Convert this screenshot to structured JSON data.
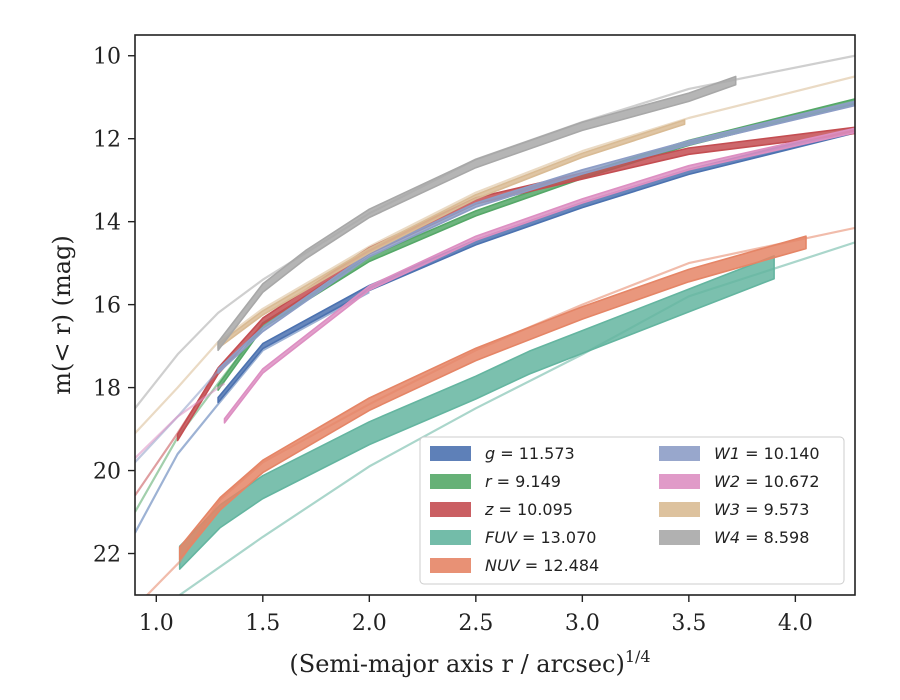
{
  "chart_data": {
    "type": "line",
    "xlabel": "(Semi-major axis r / arcsec)",
    "xlabel_sup": "1/4",
    "ylabel": "m(< r) (mag)",
    "xlim": [
      0.9,
      4.28
    ],
    "ylim": [
      23.0,
      9.5
    ],
    "y_inverted": true,
    "grid": false,
    "legend_position": "lower-right",
    "x_ticks": [
      1.0,
      1.5,
      2.0,
      2.5,
      3.0,
      3.5,
      4.0
    ],
    "x_tick_labels": [
      "1.0",
      "1.5",
      "2.0",
      "2.5",
      "3.0",
      "3.5",
      "4.0"
    ],
    "y_ticks": [
      10,
      12,
      14,
      16,
      18,
      20,
      22
    ],
    "y_tick_labels": [
      "10",
      "12",
      "14",
      "16",
      "18",
      "20",
      "22"
    ],
    "series": [
      {
        "band": "g",
        "value": "11.573",
        "color": "#4c72b0",
        "band_x": [
          1.29,
          1.5,
          2.0,
          2.5,
          3.0,
          3.5,
          4.28
        ],
        "band_y": [
          18.3,
          17.0,
          15.6,
          14.5,
          13.6,
          12.8,
          11.8
        ],
        "band_width": 0.12,
        "tail_x": [
          0.9,
          1.1,
          1.29,
          1.5,
          2.0
        ],
        "tail_y": [
          21.5,
          19.6,
          18.4,
          17.1,
          15.7
        ]
      },
      {
        "band": "r",
        "value": "9.149",
        "color": "#55a868",
        "band_x": [
          1.29,
          1.5,
          2.0,
          2.5,
          3.0,
          3.5,
          4.28
        ],
        "band_y": [
          18.0,
          16.5,
          14.9,
          13.8,
          12.9,
          12.1,
          11.1
        ],
        "band_width": 0.12,
        "tail_x": [
          0.9,
          1.1,
          1.29,
          1.5
        ],
        "tail_y": [
          21.0,
          19.2,
          17.9,
          16.5
        ]
      },
      {
        "band": "z",
        "value": "10.095",
        "color": "#c44e52",
        "band_x": [
          1.1,
          1.29,
          1.5,
          2.0,
          2.5,
          3.0,
          3.5,
          4.28
        ],
        "band_y": [
          19.2,
          17.6,
          16.4,
          14.7,
          13.5,
          12.9,
          12.3,
          11.8
        ],
        "band_width": 0.15,
        "tail_x": [
          0.9,
          1.1,
          1.29
        ],
        "tail_y": [
          20.6,
          19.1,
          17.6
        ]
      },
      {
        "band": "FUV",
        "value": "13.070",
        "color": "#64b5a0",
        "band_x": [
          1.11,
          1.3,
          1.5,
          2.0,
          2.5,
          2.75,
          3.0,
          3.5,
          3.9
        ],
        "band_y": [
          22.1,
          21.1,
          20.4,
          19.1,
          18.0,
          17.4,
          16.9,
          15.9,
          15.1
        ],
        "band_width": 0.55,
        "tail_x": [
          1.11,
          1.5,
          2.0,
          2.5,
          3.0,
          3.5,
          4.28
        ],
        "tail_y": [
          23.0,
          21.6,
          19.9,
          18.5,
          17.2,
          15.8,
          14.5
        ]
      },
      {
        "band": "NUV",
        "value": "12.484",
        "color": "#e58566",
        "band_x": [
          1.11,
          1.3,
          1.5,
          2.0,
          2.5,
          3.0,
          3.5,
          4.05
        ],
        "band_y": [
          22.0,
          20.8,
          19.9,
          18.4,
          17.2,
          16.2,
          15.3,
          14.5
        ],
        "band_width": 0.3,
        "tail_x": [
          0.9,
          1.11,
          1.3,
          1.5,
          2.0,
          2.5,
          3.0,
          3.5,
          4.28
        ],
        "tail_y": [
          23.3,
          22.2,
          20.7,
          19.8,
          18.4,
          17.1,
          16.0,
          15.0,
          14.15
        ]
      },
      {
        "band": "W1",
        "value": "10.140",
        "color": "#8d9dc6",
        "band_x": [
          1.29,
          1.5,
          2.0,
          2.5,
          3.0,
          3.5,
          4.28
        ],
        "band_y": [
          17.6,
          16.6,
          14.8,
          13.6,
          12.8,
          12.1,
          11.15
        ],
        "band_width": 0.1,
        "tail_x": [
          0.9,
          1.1,
          1.29
        ],
        "tail_y": [
          19.8,
          18.7,
          17.6
        ]
      },
      {
        "band": "W2",
        "value": "10.672",
        "color": "#dd8fc2",
        "band_x": [
          1.32,
          1.5,
          2.0,
          2.5,
          3.0,
          3.5,
          4.28
        ],
        "band_y": [
          18.8,
          17.6,
          15.6,
          14.4,
          13.5,
          12.7,
          11.8
        ],
        "band_width": 0.1,
        "tail_x": [
          0.9,
          1.1,
          1.32
        ],
        "tail_y": [
          19.7,
          18.7,
          17.9
        ]
      },
      {
        "band": "W3",
        "value": "9.573",
        "color": "#d9bb94",
        "band_x": [
          1.29,
          1.5,
          2.0,
          2.5,
          3.0,
          3.48
        ],
        "band_y": [
          17.0,
          16.2,
          14.7,
          13.4,
          12.4,
          11.6
        ],
        "band_width": 0.1,
        "tail_x": [
          0.9,
          1.1,
          1.29,
          1.5,
          2.0,
          2.5,
          3.0,
          3.5,
          4.28
        ],
        "tail_y": [
          19.1,
          18.0,
          16.9,
          16.1,
          14.6,
          13.3,
          12.3,
          11.5,
          10.5
        ]
      },
      {
        "band": "W4",
        "value": "8.598",
        "color": "#a8a8a8",
        "band_x": [
          1.29,
          1.5,
          1.7,
          2.0,
          2.5,
          3.0,
          3.5,
          3.72
        ],
        "band_y": [
          17.0,
          15.6,
          14.8,
          13.8,
          12.6,
          11.7,
          11.0,
          10.6
        ],
        "band_width": 0.2,
        "tail_x": [
          0.9,
          1.1,
          1.29,
          1.5,
          2.0,
          2.5,
          3.0,
          3.5,
          4.28
        ],
        "tail_y": [
          18.5,
          17.2,
          16.2,
          15.4,
          13.8,
          12.5,
          11.6,
          10.8,
          10.0
        ]
      }
    ]
  }
}
